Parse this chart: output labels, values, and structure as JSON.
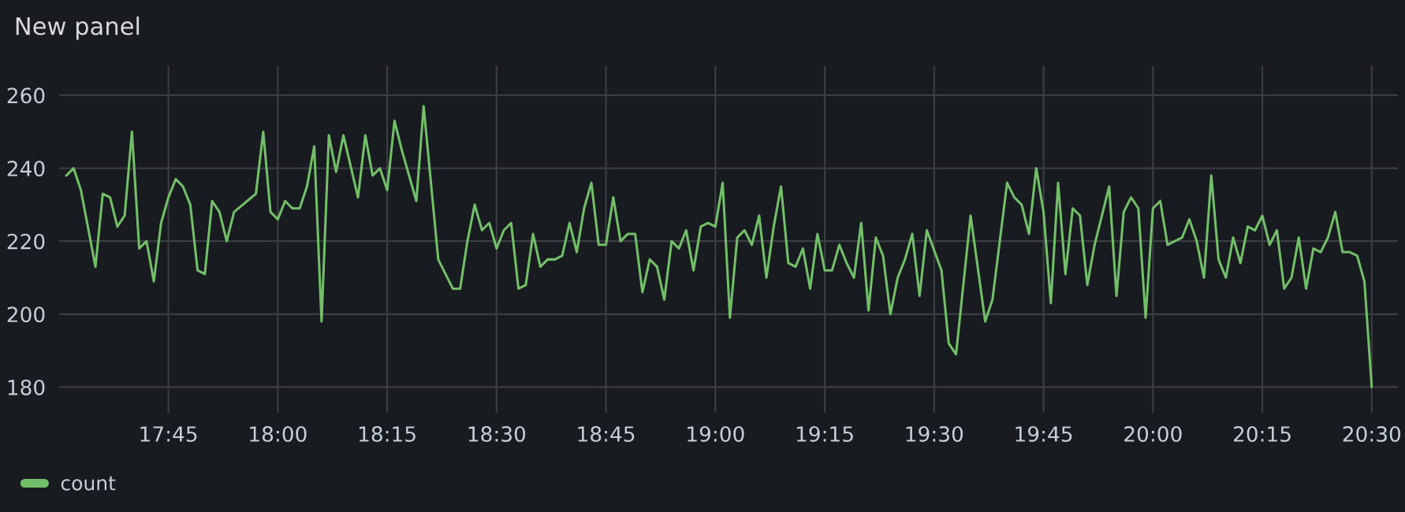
{
  "chart_data": {
    "type": "line",
    "title": "New panel",
    "legend": "bottom",
    "grid": true,
    "xlim": [
      17.5,
      20.56
    ],
    "ylim": [
      173,
      268
    ],
    "xticks": [
      {
        "value": 17.75,
        "label": "17:45"
      },
      {
        "value": 18.0,
        "label": "18:00"
      },
      {
        "value": 18.25,
        "label": "18:15"
      },
      {
        "value": 18.5,
        "label": "18:30"
      },
      {
        "value": 18.75,
        "label": "18:45"
      },
      {
        "value": 19.0,
        "label": "19:00"
      },
      {
        "value": 19.25,
        "label": "19:15"
      },
      {
        "value": 19.5,
        "label": "19:30"
      },
      {
        "value": 19.75,
        "label": "19:45"
      },
      {
        "value": 20.0,
        "label": "20:00"
      },
      {
        "value": 20.25,
        "label": "20:15"
      },
      {
        "value": 20.5,
        "label": "20:30"
      }
    ],
    "yticks": [
      180,
      200,
      220,
      240,
      260
    ],
    "x": [
      17.5167,
      17.5333,
      17.55,
      17.5833,
      17.6,
      17.6167,
      17.6333,
      17.65,
      17.6667,
      17.6833,
      17.7,
      17.7167,
      17.7333,
      17.75,
      17.7667,
      17.7833,
      17.8,
      17.8167,
      17.8333,
      17.85,
      17.8667,
      17.8833,
      17.9,
      17.95,
      17.9667,
      17.9833,
      18.0,
      18.0167,
      18.0333,
      18.05,
      18.0667,
      18.0833,
      18.1,
      18.1167,
      18.1333,
      18.15,
      18.1833,
      18.2,
      18.2167,
      18.2333,
      18.25,
      18.2667,
      18.2833,
      18.3167,
      18.3333,
      18.3667,
      18.4,
      18.4167,
      18.4333,
      18.45,
      18.4667,
      18.4833,
      18.5,
      18.5167,
      18.5333,
      18.55,
      18.5667,
      18.5833,
      18.6,
      18.6167,
      18.6333,
      18.65,
      18.6667,
      18.6833,
      18.7,
      18.7167,
      18.7333,
      18.75,
      18.7667,
      18.7833,
      18.8,
      18.8167,
      18.8333,
      18.85,
      18.8667,
      18.8833,
      18.9,
      18.9167,
      18.9333,
      18.95,
      18.9667,
      18.9833,
      19.0,
      19.0167,
      19.0333,
      19.05,
      19.0667,
      19.0833,
      19.1,
      19.1167,
      19.1333,
      19.15,
      19.1667,
      19.1833,
      19.2,
      19.2167,
      19.2333,
      19.25,
      19.2667,
      19.2833,
      19.3,
      19.3167,
      19.3333,
      19.35,
      19.3667,
      19.3833,
      19.4,
      19.4167,
      19.4333,
      19.45,
      19.4667,
      19.4833,
      19.5167,
      19.5333,
      19.55,
      19.5833,
      19.6167,
      19.6333,
      19.6667,
      19.6833,
      19.7,
      19.7167,
      19.7333,
      19.75,
      19.7667,
      19.7833,
      19.8,
      19.8167,
      19.8333,
      19.85,
      19.8667,
      19.8833,
      19.9,
      19.9167,
      19.9333,
      19.95,
      19.9667,
      19.9833,
      20.0,
      20.0167,
      20.0333,
      20.05,
      20.0667,
      20.0833,
      20.1,
      20.1167,
      20.1333,
      20.15,
      20.1667,
      20.1833,
      20.2,
      20.2167,
      20.2333,
      20.25,
      20.2667,
      20.2833,
      20.3,
      20.3167,
      20.3333,
      20.35,
      20.3667,
      20.3833,
      20.4,
      20.4167,
      20.4333,
      20.45,
      20.4667,
      20.4833,
      20.5
    ],
    "series": [
      {
        "name": "count",
        "color": "#73bf69",
        "values": [
          238,
          240,
          234,
          213,
          233,
          232,
          224,
          227,
          250,
          218,
          220,
          209,
          225,
          232,
          237,
          235,
          230,
          212,
          211,
          231,
          228,
          220,
          228,
          233,
          250,
          228,
          226,
          231,
          229,
          229,
          235,
          246,
          198,
          249,
          239,
          249,
          232,
          249,
          238,
          240,
          234,
          253,
          245,
          231,
          257,
          215,
          207,
          207,
          220,
          230,
          223,
          225,
          218,
          223,
          225,
          207,
          208,
          222,
          213,
          215,
          215,
          216,
          225,
          217,
          229,
          236,
          219,
          219,
          232,
          220,
          222,
          222,
          206,
          215,
          213,
          204,
          220,
          218,
          223,
          212,
          224,
          225,
          224,
          236,
          199,
          221,
          223,
          219,
          227,
          210,
          224,
          235,
          214,
          213,
          218,
          207,
          222,
          212,
          212,
          219,
          214,
          210,
          225,
          201,
          221,
          216,
          200,
          210,
          215,
          222,
          205,
          223,
          212,
          192,
          189,
          227,
          198,
          204,
          236,
          232,
          230,
          222,
          240,
          228,
          203,
          236,
          211,
          229,
          227,
          208,
          219,
          227,
          235,
          205,
          228,
          232,
          229,
          199,
          229,
          231,
          219,
          220,
          221,
          226,
          220,
          210,
          238,
          215,
          210,
          221,
          214,
          224,
          223,
          227,
          219,
          223,
          207,
          210,
          221,
          207,
          218,
          217,
          221,
          228,
          217,
          217,
          216,
          209,
          180
        ]
      }
    ]
  }
}
